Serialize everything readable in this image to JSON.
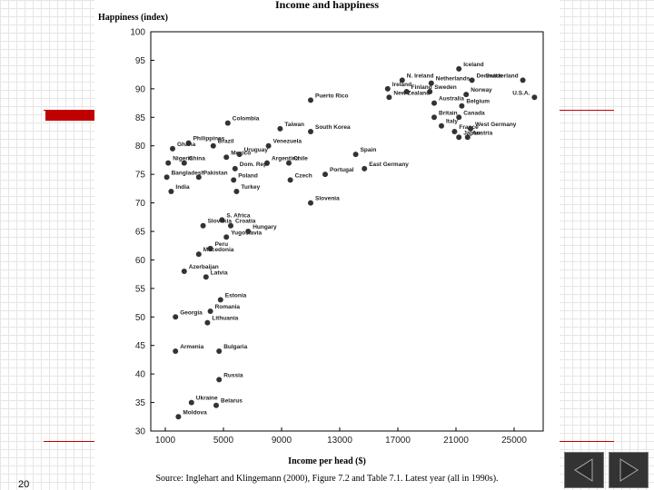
{
  "slide": {
    "number": "20"
  },
  "nav": {
    "prev_icon": "triangle-left-icon",
    "next_icon": "triangle-right-icon",
    "button_color": "#333333",
    "accent": "#c00000"
  },
  "chart_data": {
    "type": "scatter",
    "title": "Income and happiness",
    "ylabel": "Happiness (index)",
    "xlabel": "Income per head ($)",
    "source": "Source: Inglehart and Klingemann (2000), Figure 7.2 and Table 7.1. Latest year (all in 1990s).",
    "xlim": [
      0,
      27000
    ],
    "ylim": [
      30,
      100
    ],
    "x_ticks": [
      1000,
      5000,
      9000,
      13000,
      17000,
      21000,
      25000
    ],
    "y_ticks": [
      30,
      35,
      40,
      45,
      50,
      55,
      60,
      65,
      70,
      75,
      80,
      85,
      90,
      95,
      100
    ],
    "grid": false,
    "points": [
      {
        "label": "Iceland",
        "x": 21200,
        "y": 93.5
      },
      {
        "label": "Netherlands",
        "x": 19300,
        "y": 91
      },
      {
        "label": "N. Ireland",
        "x": 17300,
        "y": 91.5
      },
      {
        "label": "Ireland",
        "x": 16300,
        "y": 90
      },
      {
        "label": "Denmark",
        "x": 22100,
        "y": 91.5
      },
      {
        "label": "Switzerland",
        "x": 25600,
        "y": 91.5
      },
      {
        "label": "Finland",
        "x": 17600,
        "y": 89.5
      },
      {
        "label": "Sweden",
        "x": 19200,
        "y": 89.5
      },
      {
        "label": "Norway",
        "x": 21700,
        "y": 89
      },
      {
        "label": "U.S.A.",
        "x": 26400,
        "y": 88.5
      },
      {
        "label": "Puerto Rico",
        "x": 11000,
        "y": 88
      },
      {
        "label": "New Zealand",
        "x": 16400,
        "y": 88.5
      },
      {
        "label": "Australia",
        "x": 19500,
        "y": 87.5
      },
      {
        "label": "Belgium",
        "x": 21400,
        "y": 87
      },
      {
        "label": "Canada",
        "x": 21200,
        "y": 85
      },
      {
        "label": "Britain",
        "x": 19500,
        "y": 85
      },
      {
        "label": "Italy",
        "x": 20000,
        "y": 83.5
      },
      {
        "label": "France",
        "x": 20900,
        "y": 82.5
      },
      {
        "label": "West Germany",
        "x": 22000,
        "y": 83
      },
      {
        "label": "Japan",
        "x": 21200,
        "y": 81.5
      },
      {
        "label": "Austria",
        "x": 21800,
        "y": 81.5
      },
      {
        "label": "Colombia",
        "x": 5300,
        "y": 84
      },
      {
        "label": "Taiwan",
        "x": 8900,
        "y": 83
      },
      {
        "label": "South Korea",
        "x": 11000,
        "y": 82.5
      },
      {
        "label": "Philippines",
        "x": 2600,
        "y": 80.5
      },
      {
        "label": "Brazil",
        "x": 4300,
        "y": 80
      },
      {
        "label": "Venezuela",
        "x": 8100,
        "y": 80
      },
      {
        "label": "Ghana",
        "x": 1500,
        "y": 79.5
      },
      {
        "label": "Mexico",
        "x": 5200,
        "y": 78
      },
      {
        "label": "Uruguay",
        "x": 6100,
        "y": 78.5
      },
      {
        "label": "Spain",
        "x": 14100,
        "y": 78.5
      },
      {
        "label": "Nigeria",
        "x": 1200,
        "y": 77
      },
      {
        "label": "China",
        "x": 2300,
        "y": 77
      },
      {
        "label": "Argentina",
        "x": 8000,
        "y": 77
      },
      {
        "label": "Chile",
        "x": 9500,
        "y": 77
      },
      {
        "label": "East Germany",
        "x": 14700,
        "y": 76
      },
      {
        "label": "Dom. Rep.",
        "x": 5800,
        "y": 76
      },
      {
        "label": "Portugal",
        "x": 12000,
        "y": 75
      },
      {
        "label": "Bangladesh",
        "x": 1100,
        "y": 74.5
      },
      {
        "label": "Pakistan",
        "x": 3300,
        "y": 74.5
      },
      {
        "label": "Poland",
        "x": 5700,
        "y": 74
      },
      {
        "label": "Czech",
        "x": 9600,
        "y": 74
      },
      {
        "label": "India",
        "x": 1400,
        "y": 72
      },
      {
        "label": "Turkey",
        "x": 5900,
        "y": 72
      },
      {
        "label": "Slovenia",
        "x": 11000,
        "y": 70
      },
      {
        "label": "S. Africa",
        "x": 4900,
        "y": 67
      },
      {
        "label": "Croatia",
        "x": 5500,
        "y": 66
      },
      {
        "label": "Slovakia",
        "x": 3600,
        "y": 66
      },
      {
        "label": "Yugoslavia",
        "x": 5200,
        "y": 64
      },
      {
        "label": "Hungary",
        "x": 6700,
        "y": 65
      },
      {
        "label": "Peru",
        "x": 4100,
        "y": 62
      },
      {
        "label": "Macedonia",
        "x": 3300,
        "y": 61
      },
      {
        "label": "Azerbaijan",
        "x": 2300,
        "y": 58
      },
      {
        "label": "Latvia",
        "x": 3800,
        "y": 57
      },
      {
        "label": "Estonia",
        "x": 4800,
        "y": 53
      },
      {
        "label": "Romania",
        "x": 4100,
        "y": 51
      },
      {
        "label": "Georgia",
        "x": 1700,
        "y": 50
      },
      {
        "label": "Lithuania",
        "x": 3900,
        "y": 49
      },
      {
        "label": "Armenia",
        "x": 1700,
        "y": 44
      },
      {
        "label": "Bulgaria",
        "x": 4700,
        "y": 44
      },
      {
        "label": "Russia",
        "x": 4700,
        "y": 39
      },
      {
        "label": "Ukraine",
        "x": 2800,
        "y": 35
      },
      {
        "label": "Belarus",
        "x": 4500,
        "y": 34.5
      },
      {
        "label": "Moldova",
        "x": 1900,
        "y": 32.5
      }
    ]
  }
}
